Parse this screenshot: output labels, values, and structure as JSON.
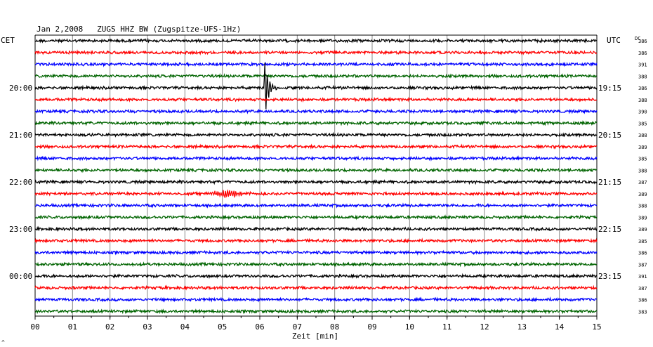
{
  "chart_data": {
    "type": "line",
    "title": "Jan 2,2008   ZUGS HHZ BW (Zugspitze-UFS-1Hz)",
    "xlabel": "Zeit [min]",
    "left_axis_label": "CET",
    "right_axis_label": "UTC",
    "dc_label": "DC",
    "xlim": [
      0,
      15
    ],
    "x_tick_labels": [
      "00",
      "01",
      "02",
      "03",
      "04",
      "05",
      "06",
      "07",
      "08",
      "09",
      "10",
      "11",
      "12",
      "13",
      "14",
      "15"
    ],
    "left_time_labels": [
      {
        "trace": 4,
        "text": "20:00"
      },
      {
        "trace": 8,
        "text": "21:00"
      },
      {
        "trace": 12,
        "text": "22:00"
      },
      {
        "trace": 16,
        "text": "23:00"
      },
      {
        "trace": 20,
        "text": "00:00"
      }
    ],
    "right_time_labels": [
      {
        "trace": 4,
        "text": "19:15"
      },
      {
        "trace": 8,
        "text": "20:15"
      },
      {
        "trace": 12,
        "text": "21:15"
      },
      {
        "trace": 16,
        "text": "22:15"
      },
      {
        "trace": 20,
        "text": "23:15"
      }
    ],
    "dc_values": [
      "386",
      "386",
      "391",
      "388",
      "386",
      "388",
      "390",
      "385",
      "388",
      "389",
      "385",
      "388",
      "387",
      "389",
      "388",
      "389",
      "389",
      "385",
      "386",
      "387",
      "391",
      "387",
      "386",
      "383"
    ],
    "trace_colors": [
      "#000000",
      "#ff0000",
      "#0000ff",
      "#006400"
    ],
    "trace_count": 24,
    "events": [
      {
        "trace": 4,
        "minute": 6.15,
        "type": "earthquake",
        "peak_amplitude": "large"
      },
      {
        "trace": 13,
        "minute": 5.15,
        "type": "burst",
        "peak_amplitude": "moderate"
      }
    ],
    "grid": "vertical-minutes",
    "footnote": "^"
  }
}
